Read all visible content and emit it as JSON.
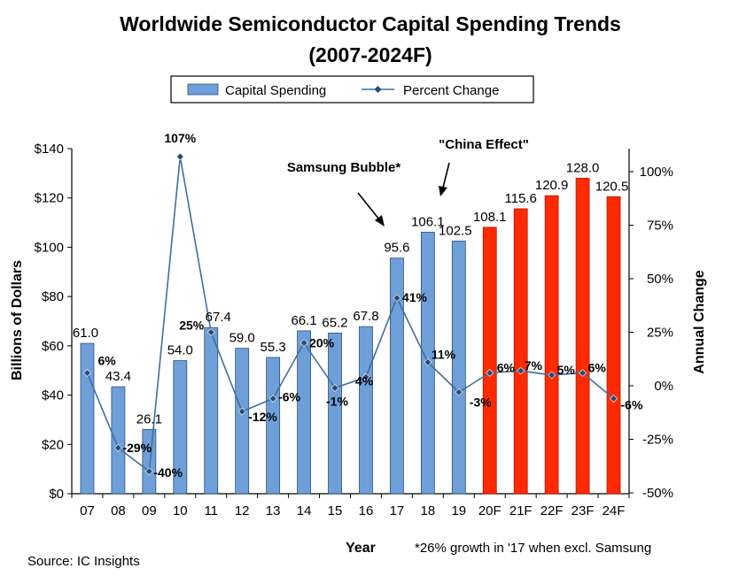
{
  "chart_data": {
    "type": "bar",
    "title_line1": "Worldwide Semiconductor Capital Spending Trends",
    "title_line2": "(2007-2024F)",
    "xlabel": "Year",
    "ylabel": "Billions of Dollars",
    "y2label": "Annual Change",
    "ylim": [
      0,
      140
    ],
    "y2lim": [
      -50,
      110
    ],
    "categories": [
      "07",
      "08",
      "09",
      "10",
      "11",
      "12",
      "13",
      "14",
      "15",
      "16",
      "17",
      "18",
      "19",
      "20F",
      "21F",
      "22F",
      "23F",
      "24F"
    ],
    "y_ticks": [
      "$0",
      "$20",
      "$40",
      "$60",
      "$80",
      "$100",
      "$120",
      "$140"
    ],
    "y2_ticks": [
      "-50%",
      "-25%",
      "0%",
      "25%",
      "50%",
      "75%",
      "100%"
    ],
    "legend": {
      "position": "top-center",
      "bar_label": "Capital Spending",
      "line_label": "Percent Change"
    },
    "series": [
      {
        "name": "Capital Spending",
        "type": "bar",
        "values": [
          61.0,
          43.4,
          26.1,
          54.0,
          67.4,
          59.0,
          55.3,
          66.1,
          65.2,
          67.8,
          95.6,
          106.1,
          102.5,
          108.1,
          115.6,
          120.9,
          128.0,
          120.5
        ],
        "labels": [
          "61.0",
          "43.4",
          "26.1",
          "54.0",
          "67.4",
          "59.0",
          "55.3",
          "66.1",
          "65.2",
          "67.8",
          "95.6",
          "106.1",
          "102.5",
          "108.1",
          "115.6",
          "120.9",
          "128.0",
          "120.5"
        ]
      },
      {
        "name": "Percent Change",
        "type": "line",
        "axis": "right",
        "values": [
          6,
          -29,
          -40,
          107,
          25,
          -12,
          -6,
          20,
          -1,
          4,
          41,
          11,
          -3,
          6,
          7,
          5,
          6,
          -6
        ],
        "labels": [
          "6%",
          "-29%",
          "-40%",
          "107%",
          "25%",
          "-12%",
          "-6%",
          "20%",
          "-1%",
          "4%",
          "41%",
          "11%",
          "-3%",
          "6%",
          "7%",
          "5%",
          "6%",
          "-6%"
        ]
      }
    ],
    "colors": {
      "actual_bar": "#6f9fd8",
      "forecast_bar": "#ff2a00",
      "line": "#3f6f9f"
    },
    "forecast_start_index": 13,
    "annotations": {
      "samsung": "Samsung Bubble*",
      "china": "\"China Effect\""
    }
  },
  "footer": {
    "source": "Source: IC Insights",
    "note": "*26% growth in '17 when excl. Samsung"
  }
}
